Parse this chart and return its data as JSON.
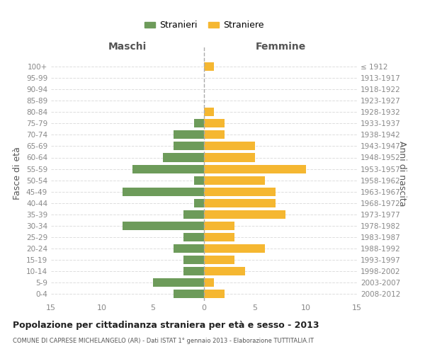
{
  "age_groups": [
    "0-4",
    "5-9",
    "10-14",
    "15-19",
    "20-24",
    "25-29",
    "30-34",
    "35-39",
    "40-44",
    "45-49",
    "50-54",
    "55-59",
    "60-64",
    "65-69",
    "70-74",
    "75-79",
    "80-84",
    "85-89",
    "90-94",
    "95-99",
    "100+"
  ],
  "birth_years": [
    "2008-2012",
    "2003-2007",
    "1998-2002",
    "1993-1997",
    "1988-1992",
    "1983-1987",
    "1978-1982",
    "1973-1977",
    "1968-1972",
    "1963-1967",
    "1958-1962",
    "1953-1957",
    "1948-1952",
    "1943-1947",
    "1938-1942",
    "1933-1937",
    "1928-1932",
    "1923-1927",
    "1918-1922",
    "1913-1917",
    "≤ 1912"
  ],
  "maschi": [
    3,
    5,
    2,
    2,
    3,
    2,
    8,
    2,
    1,
    8,
    1,
    7,
    4,
    3,
    3,
    1,
    0,
    0,
    0,
    0,
    0
  ],
  "femmine": [
    2,
    1,
    4,
    3,
    6,
    3,
    3,
    8,
    7,
    7,
    6,
    10,
    5,
    5,
    2,
    2,
    1,
    0,
    0,
    0,
    1
  ],
  "maschi_color": "#6d9b5a",
  "femmine_color": "#f5b731",
  "title": "Popolazione per cittadinanza straniera per età e sesso - 2013",
  "subtitle": "COMUNE DI CAPRESE MICHELANGELO (AR) - Dati ISTAT 1° gennaio 2013 - Elaborazione TUTTITALIA.IT",
  "ylabel_left": "Fasce di età",
  "ylabel_right": "Anni di nascita",
  "xlabel_left": "Maschi",
  "xlabel_right": "Femmine",
  "xlim": 15,
  "legend_stranieri": "Stranieri",
  "legend_straniere": "Straniere",
  "bg_color": "#ffffff",
  "grid_color": "#dddddd",
  "bar_height": 0.75
}
